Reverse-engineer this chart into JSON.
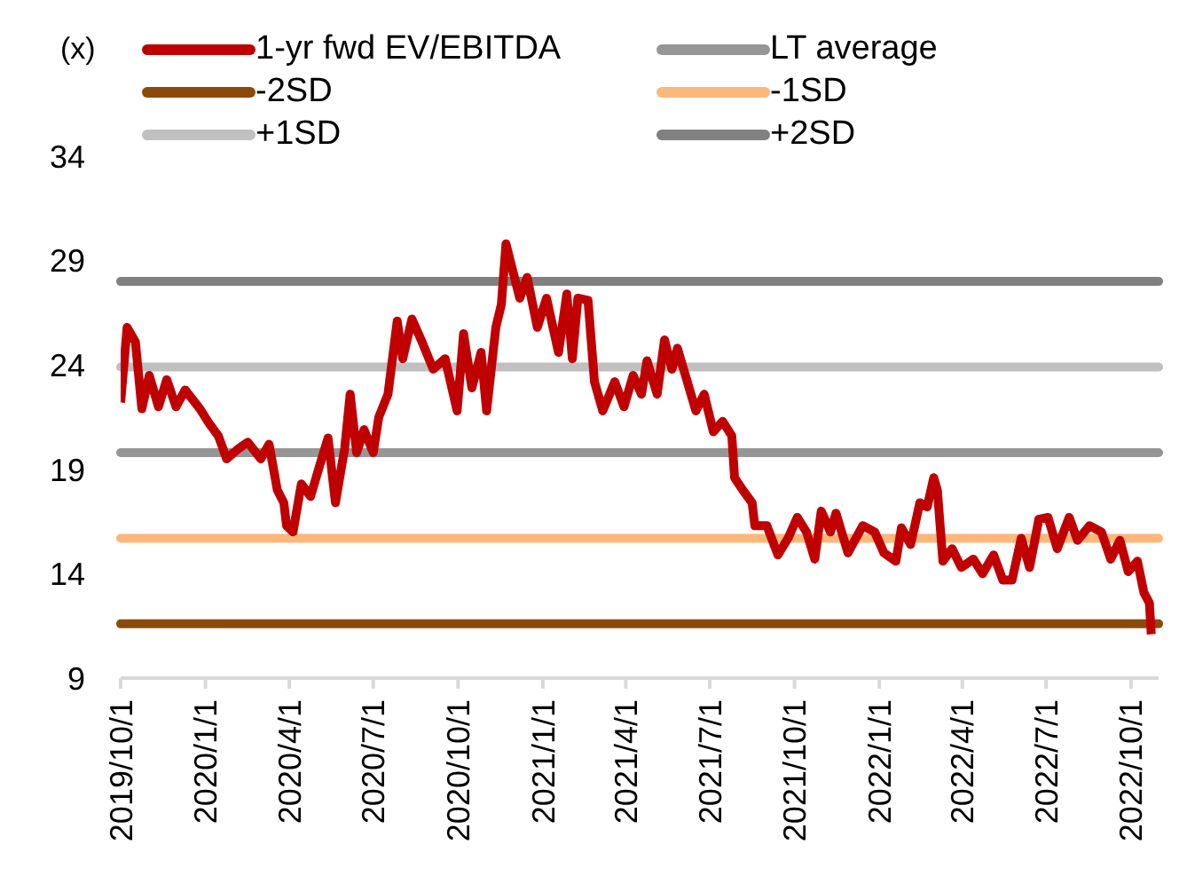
{
  "chart_data": {
    "type": "line",
    "ylabel": "(x)",
    "legend": "top",
    "grid": false,
    "marker": "none",
    "line_style": "solid",
    "xlim": [
      "2019-10-01",
      "2022-10-31"
    ],
    "xticks": [
      {
        "value": "2019-10-01",
        "label": "2019/10/1"
      },
      {
        "value": "2020-01-01",
        "label": "2020/1/1"
      },
      {
        "value": "2020-04-01",
        "label": "2020/4/1"
      },
      {
        "value": "2020-07-01",
        "label": "2020/7/1"
      },
      {
        "value": "2020-10-01",
        "label": "2020/10/1"
      },
      {
        "value": "2021-01-01",
        "label": "2021/1/1"
      },
      {
        "value": "2021-04-01",
        "label": "2021/4/1"
      },
      {
        "value": "2021-07-01",
        "label": "2021/7/1"
      },
      {
        "value": "2021-10-01",
        "label": "2021/10/1"
      },
      {
        "value": "2022-01-01",
        "label": "2022/1/1"
      },
      {
        "value": "2022-04-01",
        "label": "2022/4/1"
      },
      {
        "value": "2022-07-01",
        "label": "2022/7/1"
      },
      {
        "value": "2022-10-01",
        "label": "2022/10/1"
      }
    ],
    "ylim": [
      9,
      34
    ],
    "yticks": [
      9,
      14,
      19,
      24,
      29,
      34
    ],
    "x": [
      "2019-10-01",
      "2019-10-08",
      "2019-10-17",
      "2019-10-24",
      "2019-11-01",
      "2019-11-11",
      "2019-11-20",
      "2019-11-30",
      "2019-12-10",
      "2019-12-26",
      "2020-01-05",
      "2020-01-15",
      "2020-01-24",
      "2020-02-06",
      "2020-02-16",
      "2020-03-01",
      "2020-03-10",
      "2020-03-19",
      "2020-03-26",
      "2020-03-29",
      "2020-04-05",
      "2020-04-14",
      "2020-04-24",
      "2020-05-04",
      "2020-05-13",
      "2020-05-21",
      "2020-05-31",
      "2020-06-06",
      "2020-06-13",
      "2020-06-21",
      "2020-07-01",
      "2020-07-07",
      "2020-07-17",
      "2020-07-27",
      "2020-08-02",
      "2020-08-12",
      "2020-08-22",
      "2020-09-04",
      "2020-09-17",
      "2020-09-30",
      "2020-10-07",
      "2020-10-16",
      "2020-10-26",
      "2020-11-01",
      "2020-11-11",
      "2020-11-17",
      "2020-11-22",
      "2020-11-30",
      "2020-12-07",
      "2020-12-15",
      "2020-12-26",
      "2021-01-05",
      "2021-01-18",
      "2021-01-27",
      "2021-02-02",
      "2021-02-08",
      "2021-02-19",
      "2021-02-26",
      "2021-03-07",
      "2021-03-20",
      "2021-03-30",
      "2021-04-09",
      "2021-04-18",
      "2021-04-24",
      "2021-05-05",
      "2021-05-13",
      "2021-05-21",
      "2021-05-27",
      "2021-06-06",
      "2021-06-16",
      "2021-06-25",
      "2021-07-05",
      "2021-07-15",
      "2021-07-25",
      "2021-07-28",
      "2021-08-06",
      "2021-08-16",
      "2021-08-19",
      "2021-09-01",
      "2021-09-13",
      "2021-09-24",
      "2021-10-04",
      "2021-10-14",
      "2021-10-23",
      "2021-10-30",
      "2021-11-09",
      "2021-11-15",
      "2021-11-28",
      "2021-12-14",
      "2021-12-27",
      "2022-01-06",
      "2022-01-19",
      "2022-01-25",
      "2022-02-04",
      "2022-02-14",
      "2022-02-22",
      "2022-03-01",
      "2022-03-05",
      "2022-03-11",
      "2022-03-21",
      "2022-03-31",
      "2022-04-13",
      "2022-04-23",
      "2022-05-05",
      "2022-05-15",
      "2022-05-25",
      "2022-06-04",
      "2022-06-13",
      "2022-06-23",
      "2022-07-03",
      "2022-07-13",
      "2022-07-26",
      "2022-08-04",
      "2022-08-17",
      "2022-08-30",
      "2022-09-09",
      "2022-09-19",
      "2022-09-28",
      "2022-10-08",
      "2022-10-15",
      "2022-10-21",
      "2022-10-23"
    ],
    "series": [
      {
        "name": "1-yr fwd EV/EBITDA",
        "color": "#c00000",
        "values": [
          22.2,
          25.8,
          25.1,
          21.9,
          23.5,
          22.0,
          23.3,
          22.0,
          22.8,
          21.9,
          21.2,
          20.6,
          19.5,
          20.0,
          20.3,
          19.5,
          20.2,
          18.0,
          17.4,
          16.3,
          16.0,
          18.3,
          17.7,
          19.2,
          20.5,
          17.4,
          20.0,
          22.6,
          19.8,
          20.9,
          19.8,
          21.5,
          22.6,
          26.1,
          24.3,
          26.2,
          25.2,
          23.8,
          24.3,
          21.8,
          25.5,
          22.9,
          24.6,
          21.8,
          25.8,
          26.9,
          29.8,
          28.4,
          27.2,
          28.2,
          25.8,
          27.2,
          24.6,
          27.4,
          24.3,
          27.2,
          27.1,
          23.2,
          21.8,
          23.2,
          22.0,
          23.5,
          22.6,
          24.2,
          22.6,
          25.2,
          23.8,
          24.8,
          23.3,
          21.8,
          22.6,
          20.8,
          21.3,
          20.6,
          18.6,
          18.0,
          17.4,
          16.3,
          16.3,
          14.9,
          15.7,
          16.7,
          16.0,
          14.7,
          17.0,
          16.0,
          16.9,
          15.0,
          16.3,
          16.0,
          15.0,
          14.6,
          16.2,
          15.4,
          17.4,
          17.2,
          18.6,
          18.0,
          14.6,
          15.2,
          14.3,
          14.7,
          14.0,
          14.9,
          13.7,
          13.7,
          15.7,
          14.3,
          16.6,
          16.7,
          15.2,
          16.7,
          15.6,
          16.3,
          16.0,
          14.7,
          15.6,
          14.1,
          14.6,
          13.1,
          12.6,
          11.1
        ]
      }
    ],
    "ref_lines": [
      {
        "axis": "y",
        "value": 19.8,
        "label": "LT average",
        "color": "#969696"
      },
      {
        "axis": "y",
        "value": 11.6,
        "label": "-2SD",
        "color": "#8b4a0b"
      },
      {
        "axis": "y",
        "value": 15.7,
        "label": "-1SD",
        "color": "#fcb77a"
      },
      {
        "axis": "y",
        "value": 23.9,
        "label": "+1SD",
        "color": "#c0c0c0"
      },
      {
        "axis": "y",
        "value": 28.0,
        "label": "+2SD",
        "color": "#808080"
      }
    ]
  }
}
